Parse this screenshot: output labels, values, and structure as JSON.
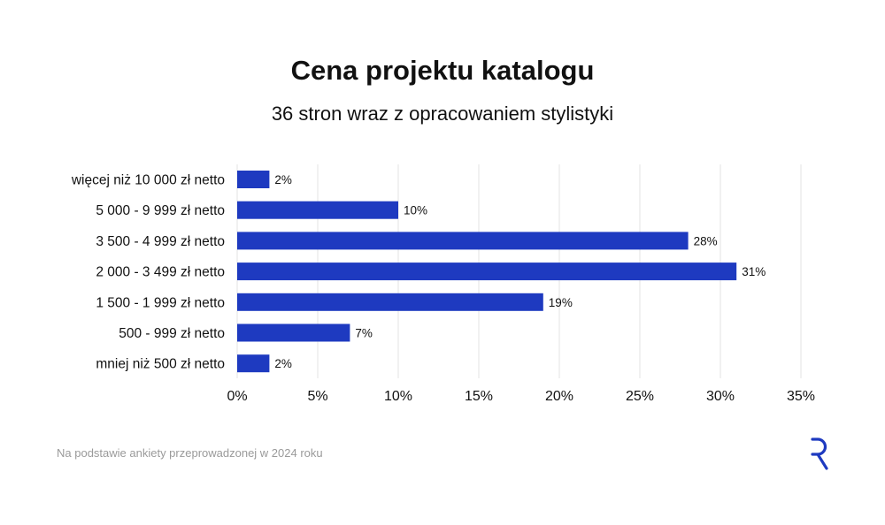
{
  "title": "Cena projektu katalogu",
  "subtitle": "36 stron wraz z opracowaniem stylistyki",
  "footnote": "Na podstawie ankiety przeprowadzonej w 2024 roku",
  "colors": {
    "bar": "#1e3ac0",
    "grid": "#e3e3e3",
    "text": "#111111",
    "footnote": "#9a9a9a"
  },
  "logo_icon": "r-logo-icon",
  "chart_data": {
    "type": "bar",
    "orientation": "horizontal",
    "categories": [
      "więcej niż 10 000 zł netto",
      "5 000 - 9 999 zł netto",
      "3 500 - 4 999 zł netto",
      "2 000 - 3 499 zł netto",
      "1 500 - 1 999 zł netto",
      "500 - 999 zł netto",
      "mniej niż 500 zł netto"
    ],
    "values": [
      2,
      10,
      28,
      31,
      19,
      7,
      2
    ],
    "data_labels": [
      "2%",
      "10%",
      "28%",
      "31%",
      "19%",
      "7%",
      "2%"
    ],
    "x_ticks": [
      "0%",
      "5%",
      "10%",
      "15%",
      "20%",
      "25%",
      "30%",
      "35%"
    ],
    "xlim": [
      0,
      35
    ],
    "xlabel": "",
    "ylabel": "",
    "grid": true,
    "legend": "none"
  }
}
